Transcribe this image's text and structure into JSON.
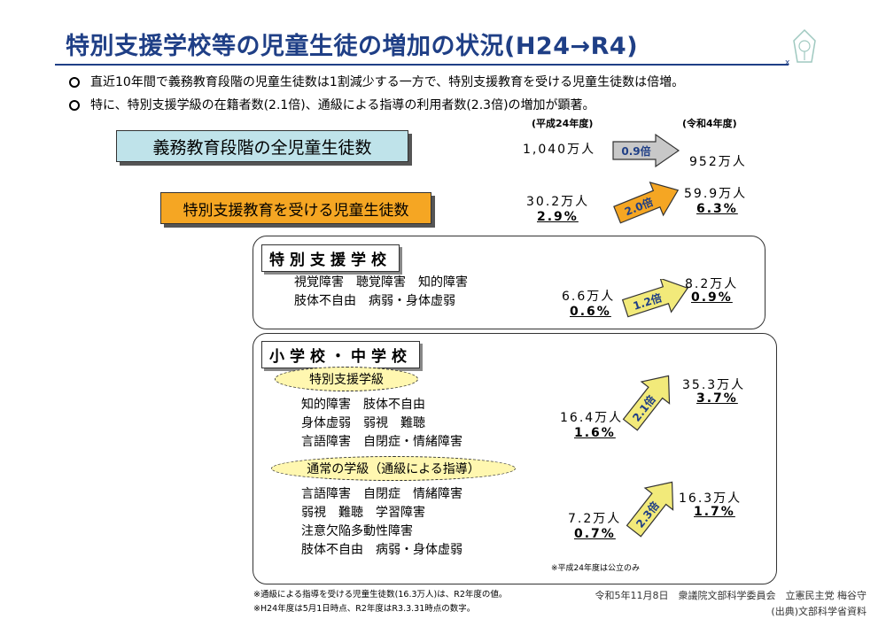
{
  "title": "特別支援学校等の児童生徒の増加の状況(H24→R4)",
  "bullets": [
    "直近10年間で義務教育段階の児童生徒数は1割減少する一方で、特別支援教育を受ける児童生徒数は倍増。",
    "特に、特別支援学級の在籍者数(2.1倍)、通級による指導の利用者数(2.3倍)の増加が顕著。"
  ],
  "years": {
    "before": "(平成24年度)",
    "after": "(令和4年度)"
  },
  "all_students": {
    "label": "義務教育段階の全児童生徒数",
    "before": "1,040万人",
    "ratio": "0.9倍",
    "after": "952万人"
  },
  "special_education": {
    "label": "特別支援教育を受ける児童生徒数",
    "before": "30.2万人",
    "before_pct": "2.9%",
    "ratio": "2.0倍",
    "after": "59.9万人",
    "after_pct": "6.3%"
  },
  "special_school": {
    "title": "特別支援学校",
    "lines": [
      "視覚障害　聴覚障害　知的障害",
      "肢体不自由　病弱・身体虚弱"
    ],
    "before": "6.6万人",
    "before_pct": "0.6%",
    "ratio": "1.2倍",
    "after": "8.2万人",
    "after_pct": "0.9%"
  },
  "elem_middle": {
    "title": "小学校・中学校",
    "special_class": {
      "label": "特別支援学級",
      "lines": [
        "知的障害　肢体不自由",
        "身体虚弱　弱視　難聴",
        "言語障害　自閉症・情緒障害"
      ],
      "before": "16.4万人",
      "before_pct": "1.6%",
      "ratio": "2.1倍",
      "after": "35.3万人",
      "after_pct": "3.7%"
    },
    "resource_room": {
      "label": "通常の学級（通級による指導）",
      "lines": [
        "言語障害　自閉症　情緒障害",
        "弱視　難聴　学習障害",
        "注意欠陥多動性障害",
        "肢体不自由　病弱・身体虚弱"
      ],
      "before": "7.2万人",
      "before_pct": "0.7%",
      "ratio": "2.3倍",
      "after": "16.3万人",
      "after_pct": "1.7%"
    },
    "note": "※平成24年度は公立のみ"
  },
  "footnotes": [
    "※通級による指導を受ける児童生徒数(16.3万人)は、R2年度の値。",
    "※H24年度は5月1日時点、R2年度はR3.3.31時点の数字。"
  ],
  "credit": "令和5年11月8日　衆議院文部科学委員会　立憲民主党 梅谷守",
  "source": "(出典)文部科学省資料",
  "colors": {
    "title": "#1f3f86",
    "banner_blue": "#bfe3ea",
    "banner_orange": "#f5a623",
    "arrow_gray": "#c8c8c8",
    "arrow_yellow": "#f2ea7a",
    "arrow_orange": "#f5a623"
  }
}
